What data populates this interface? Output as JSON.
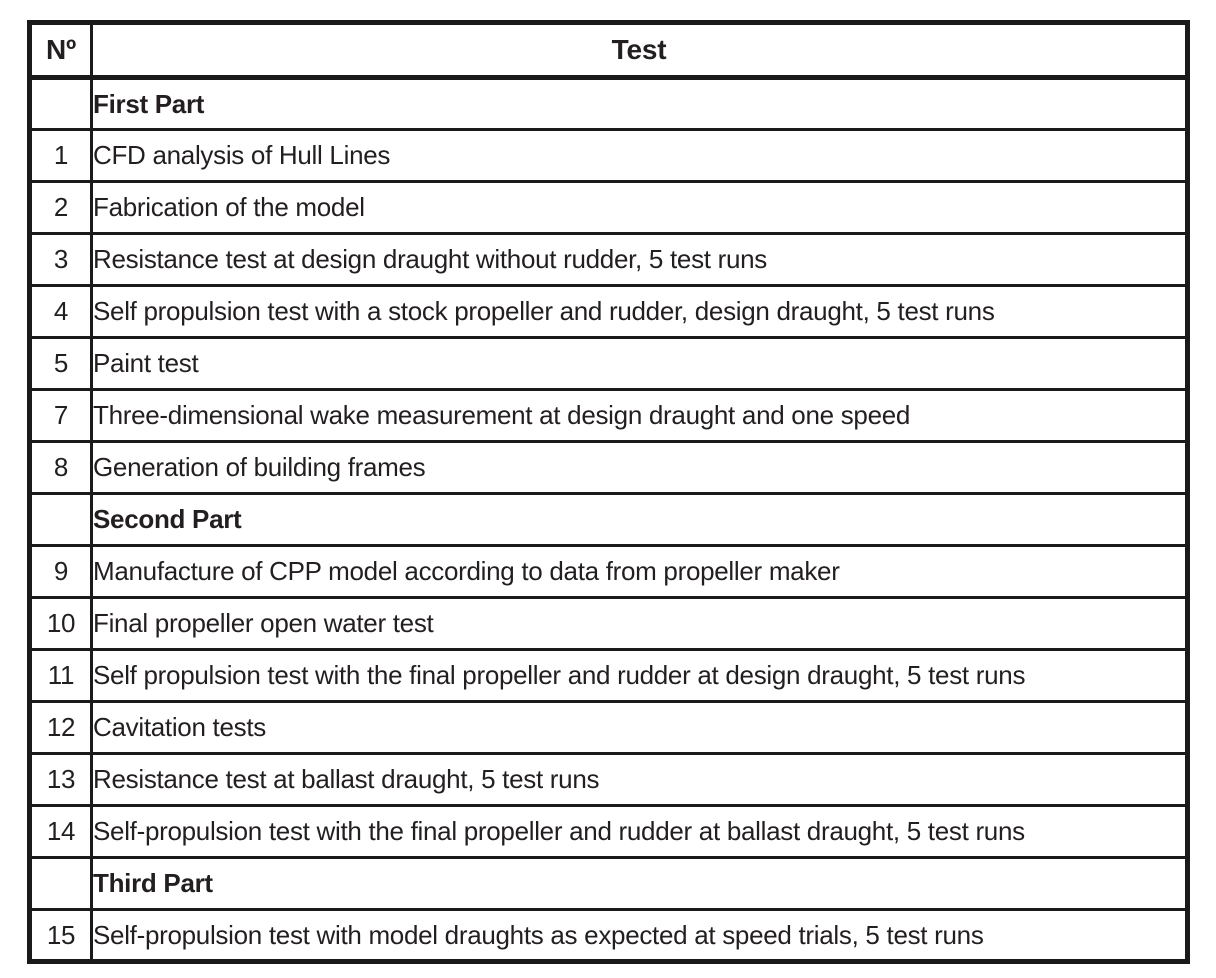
{
  "page": {
    "background_color": "#ffffff",
    "border_color": "#1a1a1a",
    "text_color": "#231f20"
  },
  "table": {
    "headers": [
      {
        "key": "num",
        "label": "Nº"
      },
      {
        "key": "test",
        "label": "Test"
      }
    ],
    "rows": [
      {
        "num": "",
        "test": "First Part",
        "section": true
      },
      {
        "num": "1",
        "test": "CFD analysis of Hull Lines",
        "section": false
      },
      {
        "num": "2",
        "test": "Fabrication of the model",
        "section": false
      },
      {
        "num": "3",
        "test": "Resistance test at design draught without rudder, 5 test runs",
        "section": false
      },
      {
        "num": "4",
        "test": "Self propulsion test with a stock propeller and rudder, design draught, 5 test runs",
        "section": false
      },
      {
        "num": "5",
        "test": "Paint test",
        "section": false
      },
      {
        "num": "7",
        "test": "Three-dimensional wake measurement at design draught and one speed",
        "section": false
      },
      {
        "num": "8",
        "test": "Generation of building frames",
        "section": false
      },
      {
        "num": "",
        "test": "Second Part",
        "section": true
      },
      {
        "num": "9",
        "test": "Manufacture of CPP model according to data from propeller maker",
        "section": false
      },
      {
        "num": "10",
        "test": "Final propeller open water test",
        "section": false
      },
      {
        "num": "11",
        "test": "Self propulsion test with the final propeller and rudder at design draught, 5 test runs",
        "section": false
      },
      {
        "num": "12",
        "test": "Cavitation tests",
        "section": false
      },
      {
        "num": "13",
        "test": "Resistance test at ballast draught, 5 test runs",
        "section": false
      },
      {
        "num": "14",
        "test": "Self-propulsion test with the final propeller and rudder at ballast draught, 5 test runs",
        "section": false
      },
      {
        "num": "",
        "test": "Third Part",
        "section": true
      },
      {
        "num": "15",
        "test": "Self-propulsion test with model draughts as expected at speed trials, 5 test runs",
        "section": false
      }
    ]
  }
}
